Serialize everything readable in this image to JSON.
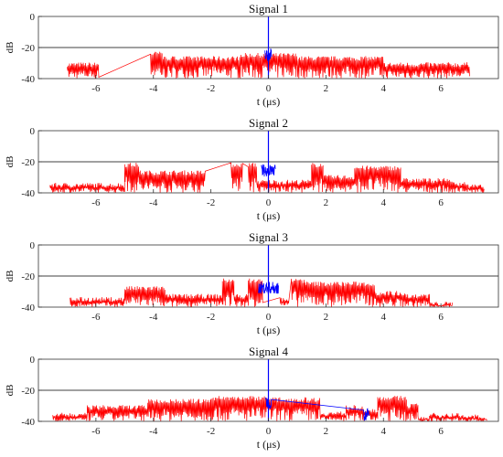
{
  "colors": {
    "signal": "#ff0000",
    "reference": "#0000ff",
    "threshold": "#000000",
    "axes": "#333333"
  },
  "chart_data": [
    {
      "type": "line",
      "title": "Signal 1",
      "xlabel": "t (μs)",
      "ylabel": "dB",
      "xlim": [
        -8,
        8
      ],
      "ylim": [
        -40,
        0
      ],
      "xticks": [
        -6,
        -4,
        -2,
        0,
        2,
        4,
        6
      ],
      "yticks": [
        0,
        -20,
        -40
      ],
      "threshold_db": -20,
      "series": [
        {
          "color": "#ff0000",
          "segments": [
            [
              -7.0,
              -5.9,
              -31
            ],
            [
              -4.1,
              -3.7,
              -24
            ],
            [
              -3.7,
              -1.0,
              -27
            ],
            [
              -1.0,
              1.0,
              -25
            ],
            [
              1.0,
              4.0,
              -27
            ],
            [
              4.0,
              7.0,
              -31
            ]
          ]
        },
        {
          "color": "#0000ff",
          "peak": [
            0,
            0
          ],
          "segments": [
            [
              -0.12,
              0.12,
              -27
            ]
          ]
        }
      ]
    },
    {
      "type": "line",
      "title": "Signal 2",
      "xlabel": "t (μs)",
      "ylabel": "dB",
      "xlim": [
        -8,
        8
      ],
      "ylim": [
        -40,
        0
      ],
      "xticks": [
        -6,
        -4,
        -2,
        0,
        2,
        4,
        6
      ],
      "yticks": [
        0,
        -20,
        -40
      ],
      "threshold_db": -20,
      "series": [
        {
          "color": "#ff0000",
          "segments": [
            [
              -7.6,
              -5.0,
              -35
            ],
            [
              -5.0,
              -4.5,
              -22
            ],
            [
              -4.5,
              -2.2,
              -27
            ],
            [
              -1.3,
              -0.9,
              -22
            ],
            [
              -0.7,
              -0.4,
              -22
            ],
            [
              -0.4,
              1.5,
              -33
            ],
            [
              1.5,
              1.9,
              -22
            ],
            [
              1.9,
              3.0,
              -30
            ],
            [
              3.0,
              4.6,
              -24
            ],
            [
              4.6,
              6.3,
              -32
            ],
            [
              6.3,
              6.9,
              -34
            ],
            [
              6.9,
              7.5,
              -36
            ]
          ]
        },
        {
          "color": "#0000ff",
          "peak": [
            0,
            0
          ],
          "segments": [
            [
              -0.25,
              0.25,
              -28
            ]
          ]
        }
      ]
    },
    {
      "type": "line",
      "title": "Signal 3",
      "xlabel": "t (μs)",
      "ylabel": "dB",
      "xlim": [
        -8,
        8
      ],
      "ylim": [
        -40,
        0
      ],
      "xticks": [
        -6,
        -4,
        -2,
        0,
        2,
        4,
        6
      ],
      "yticks": [
        0,
        -20,
        -40
      ],
      "threshold_db": -20,
      "series": [
        {
          "color": "#ff0000",
          "segments": [
            [
              -6.9,
              -5.0,
              -35
            ],
            [
              -5.0,
              -3.6,
              -28
            ],
            [
              -3.6,
              -1.6,
              -33
            ],
            [
              -1.6,
              -1.2,
              -23
            ],
            [
              -1.2,
              -0.7,
              -33
            ],
            [
              -0.7,
              -0.2,
              -23
            ],
            [
              0.4,
              0.7,
              -35
            ],
            [
              0.8,
              1.3,
              -23
            ],
            [
              1.3,
              3.7,
              -25
            ],
            [
              3.7,
              4.8,
              -31
            ],
            [
              4.8,
              5.6,
              -33
            ],
            [
              5.6,
              6.4,
              -38
            ]
          ]
        },
        {
          "color": "#0000ff",
          "peak": [
            0,
            0
          ],
          "segments": [
            [
              -0.35,
              0.35,
              -30
            ]
          ]
        }
      ]
    },
    {
      "type": "line",
      "title": "Signal 4",
      "xlabel": "t (μs)",
      "ylabel": "dB",
      "xlim": [
        -8,
        8
      ],
      "ylim": [
        -40,
        0
      ],
      "xticks": [
        -6,
        -4,
        -2,
        0,
        2,
        4,
        6
      ],
      "yticks": [
        0,
        -20,
        -40
      ],
      "threshold_db": -20,
      "series": [
        {
          "color": "#ff0000",
          "segments": [
            [
              -7.5,
              -6.3,
              -36
            ],
            [
              -6.3,
              -4.2,
              -31
            ],
            [
              -4.2,
              -2.0,
              -27
            ],
            [
              -2.0,
              0.0,
              -25
            ],
            [
              0.0,
              1.8,
              -26
            ],
            [
              1.8,
              2.7,
              -35
            ],
            [
              2.7,
              3.3,
              -31
            ],
            [
              3.3,
              3.8,
              -33
            ],
            [
              3.8,
              4.8,
              -25
            ],
            [
              4.8,
              5.2,
              -30
            ],
            [
              5.2,
              5.6,
              -38
            ],
            [
              5.6,
              6.6,
              -36
            ],
            [
              6.6,
              7.3,
              -37
            ],
            [
              7.3,
              7.6,
              -38
            ]
          ]
        },
        {
          "color": "#0000ff",
          "peak": [
            0,
            0
          ],
          "segments": [
            [
              -0.1,
              0.1,
              -30
            ],
            [
              3.3,
              3.5,
              -38
            ]
          ]
        }
      ]
    }
  ]
}
